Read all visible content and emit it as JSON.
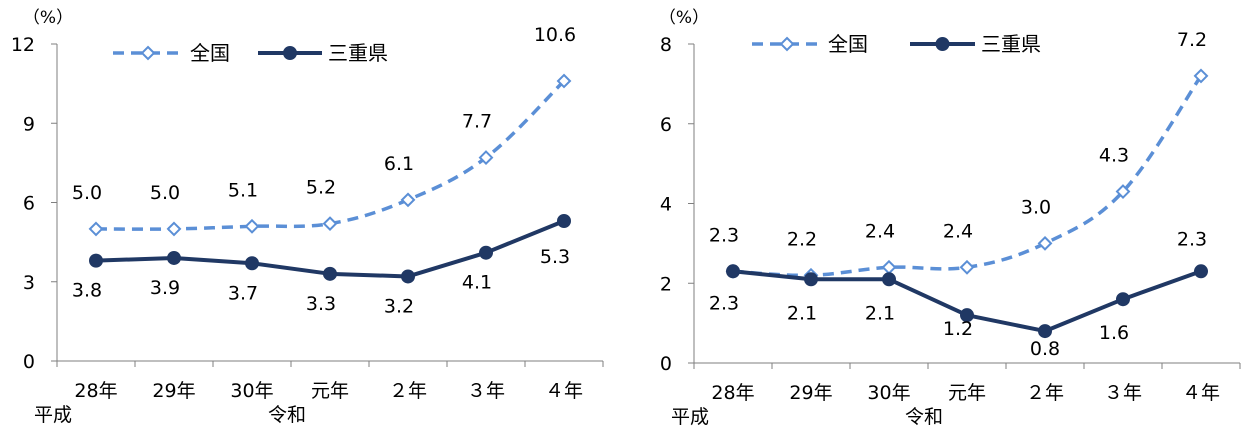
{
  "chart_data": [
    {
      "type": "line",
      "unit_label": "（%）",
      "categories": [
        "28年",
        "29年",
        "30年",
        "元年",
        "２年",
        "３年",
        "４年"
      ],
      "era_labels": [
        {
          "category_index": 0,
          "label": "平成"
        },
        {
          "category_index": 3,
          "label": "令和"
        }
      ],
      "y_ticks": [
        "0",
        "3",
        "6",
        "9",
        "12"
      ],
      "ylim": [
        0,
        12
      ],
      "legend_position": "top",
      "series": [
        {
          "name": "全国",
          "style": "dashed",
          "marker": "open-diamond",
          "color": "#5B8FD6",
          "values": [
            5.0,
            5.0,
            5.1,
            5.2,
            6.1,
            7.7,
            10.6
          ],
          "labels": [
            "5.0",
            "5.0",
            "5.1",
            "5.2",
            "6.1",
            "7.7",
            "10.6"
          ]
        },
        {
          "name": "三重県",
          "style": "solid",
          "marker": "filled-circle",
          "color": "#203864",
          "values": [
            3.8,
            3.9,
            3.7,
            3.3,
            3.2,
            4.1,
            5.3
          ],
          "labels": [
            "3.8",
            "3.9",
            "3.7",
            "3.3",
            "3.2",
            "4.1",
            "5.3"
          ]
        }
      ]
    },
    {
      "type": "line",
      "unit_label": "（%）",
      "categories": [
        "28年",
        "29年",
        "30年",
        "元年",
        "２年",
        "３年",
        "４年"
      ],
      "era_labels": [
        {
          "category_index": 0,
          "label": "平成"
        },
        {
          "category_index": 3,
          "label": "令和"
        }
      ],
      "y_ticks": [
        "0",
        "2",
        "4",
        "6",
        "8"
      ],
      "ylim": [
        0,
        8
      ],
      "legend_position": "top",
      "series": [
        {
          "name": "全国",
          "style": "dashed",
          "marker": "open-diamond",
          "color": "#5B8FD6",
          "values": [
            2.3,
            2.2,
            2.4,
            2.4,
            3.0,
            4.3,
            7.2
          ],
          "labels": [
            "2.3",
            "2.2",
            "2.4",
            "2.4",
            "3.0",
            "4.3",
            "7.2"
          ]
        },
        {
          "name": "三重県",
          "style": "solid",
          "marker": "filled-circle",
          "color": "#203864",
          "values": [
            2.3,
            2.1,
            2.1,
            1.2,
            0.8,
            1.6,
            2.3
          ],
          "labels": [
            "2.3",
            "2.1",
            "2.1",
            "1.2",
            "0.8",
            "1.6",
            "2.3"
          ]
        }
      ]
    }
  ]
}
